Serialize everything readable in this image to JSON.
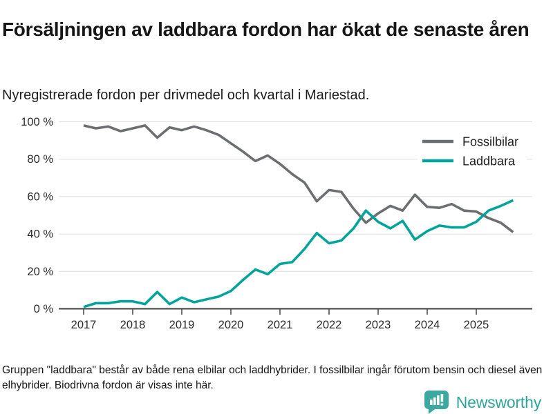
{
  "header": {
    "title": "Försäljningen av laddbara fordon har ökat de senaste åren",
    "subtitle": "Nyregistrerade fordon per drivmedel och kvartal i Mariestad."
  },
  "chart_data": {
    "type": "line",
    "unit": "%",
    "categories": [
      "2017 Q1",
      "2017 Q2",
      "2017 Q3",
      "2017 Q4",
      "2018 Q1",
      "2018 Q2",
      "2018 Q3",
      "2018 Q4",
      "2019 Q1",
      "2019 Q2",
      "2019 Q3",
      "2019 Q4",
      "2020 Q1",
      "2020 Q2",
      "2020 Q3",
      "2020 Q4",
      "2021 Q1",
      "2021 Q2",
      "2021 Q3",
      "2021 Q4",
      "2022 Q1",
      "2022 Q2",
      "2022 Q3",
      "2022 Q4",
      "2023 Q1",
      "2023 Q2",
      "2023 Q3",
      "2023 Q4",
      "2024 Q1",
      "2024 Q2",
      "2024 Q3",
      "2024 Q4",
      "2025 Q1",
      "2025 Q2",
      "2025 Q3",
      "2025 Q4"
    ],
    "series": [
      {
        "name": "Fossilbilar",
        "color": "#6d6e71",
        "values": [
          98,
          96.5,
          97.5,
          95,
          96.5,
          98,
          91.5,
          97,
          95.5,
          97.5,
          95.5,
          93,
          88.5,
          84,
          79,
          82,
          77.5,
          72,
          67.5,
          57.5,
          63.5,
          62.5,
          53.5,
          46,
          51,
          55,
          52.5,
          61,
          54.5,
          54,
          56,
          52.5,
          52,
          48.5,
          46,
          41
        ]
      },
      {
        "name": "Laddbara",
        "color": "#00a49a",
        "values": [
          1,
          3,
          3,
          4,
          4,
          2.5,
          9,
          2.5,
          6,
          3.5,
          5,
          6.5,
          9.5,
          15.5,
          21,
          18.5,
          24,
          25,
          32,
          40.5,
          35,
          36.5,
          43,
          52.5,
          46.5,
          43,
          47,
          37,
          41.5,
          44.5,
          43.5,
          43.5,
          46.5,
          52.5,
          55,
          58
        ]
      }
    ],
    "x_tick_labels": [
      "2017",
      "2018",
      "2019",
      "2020",
      "2021",
      "2022",
      "2023",
      "2024",
      "2025"
    ],
    "y_ticks": [
      0,
      20,
      40,
      60,
      80,
      100
    ],
    "y_tick_suffix": " %",
    "ylim": [
      0,
      100
    ],
    "grid": "horizontal",
    "legend_position": "top-right"
  },
  "footer": {
    "note": "Gruppen \"laddbara\" består av både rena elbilar och laddhybrider. I fossilbilar ingår förutom bensin och diesel även elhybrider. Biodrivna fordon är visas inte här."
  },
  "branding": {
    "name": "Newsworthy",
    "logo_icon": "bar-chart-speech-bubble-icon",
    "logo_color": "#3ba99f",
    "text_color": "#2ea59b"
  }
}
